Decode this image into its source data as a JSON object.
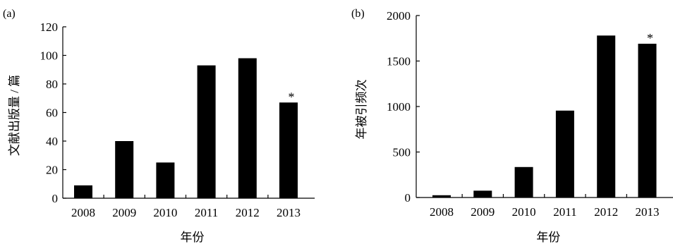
{
  "chart_data": [
    {
      "type": "bar",
      "panel_label": "(a)",
      "categories": [
        "2008",
        "2009",
        "2010",
        "2011",
        "2012",
        "2013"
      ],
      "values": [
        9,
        40,
        25,
        93,
        98,
        67
      ],
      "xlabel": "年份",
      "ylabel": "文献出版量 / 篇",
      "ylim": [
        0,
        120
      ],
      "yticks": [
        "0",
        "20",
        "40",
        "60",
        "80",
        "100",
        "120"
      ],
      "annotation": "*",
      "annotation_category": "2013",
      "grid": false,
      "bar_color": "#000000"
    },
    {
      "type": "bar",
      "panel_label": "(b)",
      "categories": [
        "2008",
        "2009",
        "2010",
        "2011",
        "2012",
        "2013"
      ],
      "values": [
        25,
        75,
        335,
        955,
        1780,
        1690
      ],
      "xlabel": "年份",
      "ylabel": "年被引频次",
      "ylim": [
        0,
        2000
      ],
      "yticks": [
        "0",
        "500",
        "1000",
        "1500",
        "2000"
      ],
      "annotation": "*",
      "annotation_category": "2013",
      "grid": false,
      "bar_color": "#000000"
    }
  ]
}
